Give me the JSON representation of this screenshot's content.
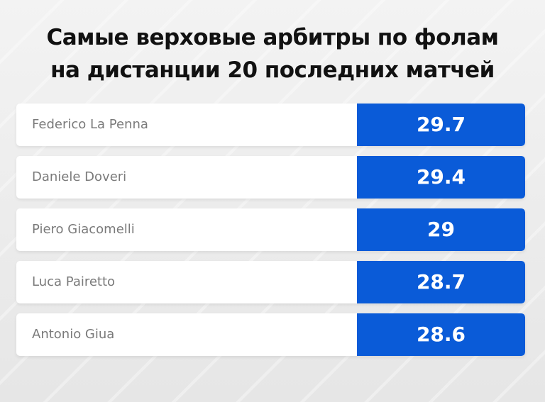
{
  "title_lines": [
    "Самые верховые арбитры по фолам",
    "на дистанции 20 последних матчей"
  ],
  "colors": {
    "accent": "#0a5bd8",
    "background": "#ececec",
    "row_bg": "#ffffff",
    "name_text": "#7a7a7a"
  },
  "chart_data": {
    "type": "table",
    "title": "Самые верховые арбитры по фолам на дистанции 20 последних матчей",
    "categories": [
      "Federico La Penna",
      "Daniele Doveri",
      "Piero Giacomelli",
      "Luca Pairetto",
      "Antonio Giua"
    ],
    "values": [
      29.7,
      29.4,
      29,
      28.7,
      28.6
    ],
    "rows": [
      {
        "name": "Federico La Penna",
        "value": "29.7"
      },
      {
        "name": "Daniele Doveri",
        "value": "29.4"
      },
      {
        "name": "Piero Giacomelli",
        "value": "29"
      },
      {
        "name": "Luca Pairetto",
        "value": "28.7"
      },
      {
        "name": "Antonio Giua",
        "value": "28.6"
      }
    ]
  }
}
